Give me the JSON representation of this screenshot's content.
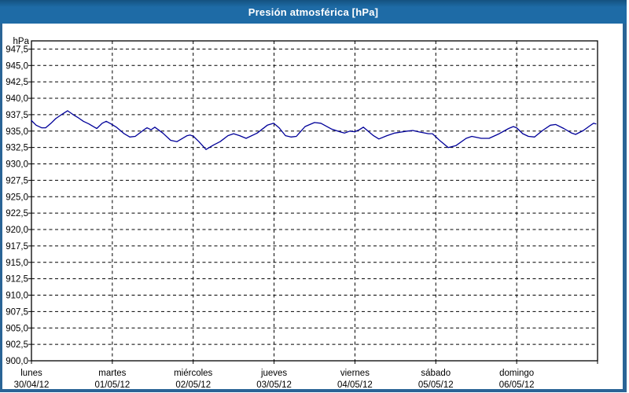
{
  "window": {
    "title": "Presión atmosférica [hPa]"
  },
  "colors": {
    "title_bar": "#1e6ba6",
    "title_text": "#ffffff",
    "window_border": "#2a6496",
    "background": "#ffffff",
    "plot_border": "#000000",
    "grid": "#000000",
    "label_text": "#000000",
    "line": "#000099"
  },
  "chart_data": {
    "type": "line",
    "title": "Presión atmosférica [hPa]",
    "unit_label": "hPa",
    "decimal_separator": ",",
    "ylim": [
      900,
      948.75
    ],
    "y_tick_step": 2.5,
    "y_tick_values": [
      947.5,
      945.0,
      942.5,
      940.0,
      937.5,
      935.0,
      932.5,
      930.0,
      927.5,
      925.0,
      922.5,
      920.0,
      917.5,
      915.0,
      912.5,
      910.0,
      907.5,
      905.0,
      902.5,
      900.0
    ],
    "y_tick_labels": [
      "947,5",
      "945,0",
      "942,5",
      "940,0",
      "937,5",
      "935,0",
      "932,5",
      "930,0",
      "927,5",
      "925,0",
      "922,5",
      "920,0",
      "917,5",
      "915,0",
      "912,5",
      "910,0",
      "907,5",
      "905,0",
      "902,5",
      "900,0"
    ],
    "x_axis": {
      "total_hours": 168,
      "day_width_hours": 24,
      "days": [
        {
          "name": "lunes",
          "date": "30/04/12"
        },
        {
          "name": "martes",
          "date": "01/05/12"
        },
        {
          "name": "miércoles",
          "date": "02/05/12"
        },
        {
          "name": "jueves",
          "date": "03/05/12"
        },
        {
          "name": "viernes",
          "date": "04/05/12"
        },
        {
          "name": "sábado",
          "date": "05/05/12"
        },
        {
          "name": "domingo",
          "date": "06/05/12"
        }
      ]
    },
    "grid": {
      "horizontal": "dashed",
      "vertical": "dashed-at-day-boundaries",
      "style": "black 1px dashed"
    },
    "legend": "none",
    "series": [
      {
        "name": "Presión atmosférica",
        "color": "#000099",
        "points_hours_hpa": [
          [
            0,
            936.6
          ],
          [
            1.4,
            935.9
          ],
          [
            3,
            935.5
          ],
          [
            4.2,
            935.5
          ],
          [
            5.8,
            936.2
          ],
          [
            7.2,
            936.9
          ],
          [
            8.9,
            937.5
          ],
          [
            10.7,
            938.1
          ],
          [
            12.4,
            937.5
          ],
          [
            14,
            937.0
          ],
          [
            15.4,
            936.5
          ],
          [
            17,
            936.1
          ],
          [
            18.7,
            935.6
          ],
          [
            19.4,
            935.4
          ],
          [
            21,
            936.2
          ],
          [
            22.2,
            936.5
          ],
          [
            23.6,
            936.1
          ],
          [
            25.2,
            935.6
          ],
          [
            27.5,
            934.6
          ],
          [
            29.2,
            934.1
          ],
          [
            30.8,
            934.2
          ],
          [
            33.4,
            935.2
          ],
          [
            34.3,
            935.5
          ],
          [
            35.5,
            935.2
          ],
          [
            36.6,
            935.6
          ],
          [
            39,
            934.7
          ],
          [
            41.3,
            933.6
          ],
          [
            43.2,
            933.4
          ],
          [
            46.2,
            934.3
          ],
          [
            47.1,
            934.4
          ],
          [
            48.1,
            934.2
          ],
          [
            49.7,
            933.4
          ],
          [
            51.8,
            932.2
          ],
          [
            54.1,
            932.9
          ],
          [
            56,
            933.4
          ],
          [
            58.3,
            934.3
          ],
          [
            60,
            934.6
          ],
          [
            61.8,
            934.3
          ],
          [
            63.7,
            933.9
          ],
          [
            67,
            934.7
          ],
          [
            70,
            935.9
          ],
          [
            71.9,
            936.2
          ],
          [
            73.5,
            935.5
          ],
          [
            75.4,
            934.3
          ],
          [
            77,
            934.1
          ],
          [
            78.6,
            934.2
          ],
          [
            81.2,
            935.7
          ],
          [
            84,
            936.3
          ],
          [
            85.9,
            936.2
          ],
          [
            89.1,
            935.3
          ],
          [
            91.5,
            934.9
          ],
          [
            92.9,
            934.7
          ],
          [
            94.5,
            935.0
          ],
          [
            95.9,
            934.9
          ],
          [
            97.3,
            935.2
          ],
          [
            98.5,
            935.6
          ],
          [
            101.5,
            934.3
          ],
          [
            103.1,
            933.8
          ],
          [
            105.5,
            934.3
          ],
          [
            107.8,
            934.7
          ],
          [
            111.5,
            935.0
          ],
          [
            113.2,
            935.1
          ],
          [
            114.8,
            934.9
          ],
          [
            117.8,
            934.6
          ],
          [
            119,
            934.6
          ],
          [
            121.3,
            933.5
          ],
          [
            123.7,
            932.5
          ],
          [
            126,
            932.8
          ],
          [
            129,
            933.9
          ],
          [
            130.7,
            934.2
          ],
          [
            133.5,
            933.9
          ],
          [
            135.8,
            933.9
          ],
          [
            138.8,
            934.6
          ],
          [
            141.6,
            935.4
          ],
          [
            143,
            935.7
          ],
          [
            144,
            935.5
          ],
          [
            145.8,
            934.6
          ],
          [
            147.5,
            934.2
          ],
          [
            149.3,
            934.1
          ],
          [
            151.7,
            935.1
          ],
          [
            154,
            935.9
          ],
          [
            155.6,
            936.0
          ],
          [
            158,
            935.4
          ],
          [
            160.3,
            934.7
          ],
          [
            161.5,
            934.5
          ],
          [
            163.8,
            935.1
          ],
          [
            165.7,
            935.8
          ],
          [
            166.8,
            936.2
          ],
          [
            167.5,
            936.1
          ]
        ]
      }
    ]
  }
}
